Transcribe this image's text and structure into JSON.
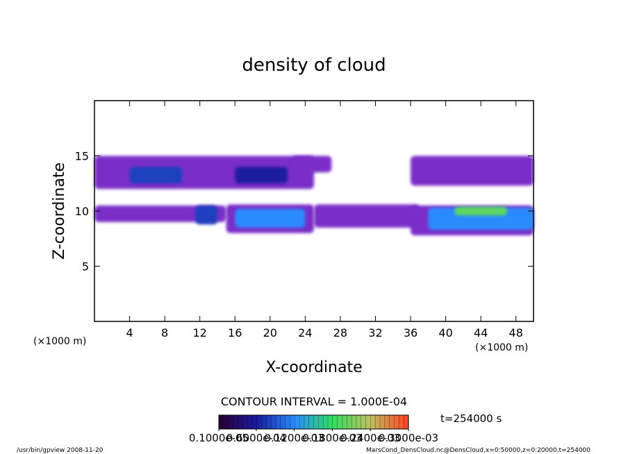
{
  "chart_data": {
    "type": "contour",
    "title": "density of cloud",
    "x_label": "X-coordinate",
    "y_label": "Z-coordinate",
    "x_unit": "(×1000 m)",
    "y_unit": "(×1000 m)",
    "xlim": [
      0,
      50
    ],
    "ylim": [
      0,
      20
    ],
    "xticks": [
      4,
      8,
      12,
      16,
      20,
      24,
      28,
      32,
      36,
      40,
      44,
      48
    ],
    "yticks": [
      5,
      10,
      15
    ],
    "regions": [
      {
        "x": [
          0,
          25
        ],
        "z": [
          12,
          15
        ],
        "value": 3e-05
      },
      {
        "x": [
          22.5,
          27
        ],
        "z": [
          13.5,
          15
        ],
        "value": 3e-05
      },
      {
        "x": [
          36,
          50
        ],
        "z": [
          12.3,
          15
        ],
        "value": 3e-05
      },
      {
        "x": [
          4,
          10
        ],
        "z": [
          12.5,
          14
        ],
        "value": 8e-05
      },
      {
        "x": [
          16,
          22
        ],
        "z": [
          12.5,
          14
        ],
        "value": 6e-05
      },
      {
        "x": [
          0,
          15
        ],
        "z": [
          9,
          10.5
        ],
        "value": 3e-05
      },
      {
        "x": [
          11.5,
          14
        ],
        "z": [
          8.8,
          10.5
        ],
        "value": 8e-05
      },
      {
        "x": [
          15,
          25
        ],
        "z": [
          8,
          10.6
        ],
        "value": 3e-05
      },
      {
        "x": [
          16,
          24
        ],
        "z": [
          8.5,
          10.2
        ],
        "value": 0.00012
      },
      {
        "x": [
          25,
          37
        ],
        "z": [
          8.5,
          10.6
        ],
        "value": 3e-05
      },
      {
        "x": [
          36,
          50
        ],
        "z": [
          7.8,
          10.5
        ],
        "value": 3e-05
      },
      {
        "x": [
          38,
          50
        ],
        "z": [
          8.3,
          10.3
        ],
        "value": 0.00012
      },
      {
        "x": [
          41,
          47
        ],
        "z": [
          9.6,
          10.4
        ],
        "value": 0.0002
      }
    ],
    "contour_interval": "CONTOUR INTERVAL = 1.000E-04",
    "time_label": "t=254000 s",
    "colorbar": {
      "colors": [
        "#2a0030",
        "#1a1aa0",
        "#2a8cff",
        "#30e060",
        "#c0c060",
        "#ff4020"
      ],
      "ticks": [
        {
          "value": 1e-06,
          "label": "0.1000e-05"
        },
        {
          "value": 6e-05,
          "label": "0.6000e-04"
        },
        {
          "value": 0.00012,
          "label": "0.1200e-03"
        },
        {
          "value": 0.00018,
          "label": "0.1800e-03"
        },
        {
          "value": 0.00024,
          "label": "0.2400e-03"
        },
        {
          "value": 0.0003,
          "label": "0.3000e-03"
        }
      ]
    },
    "footer_left": "/usr/bin/gpview  2008-11-20",
    "footer_right": "MarsCond_DensCloud.nc@DensCloud,x=0:50000,z=0:20000,t=254000"
  }
}
